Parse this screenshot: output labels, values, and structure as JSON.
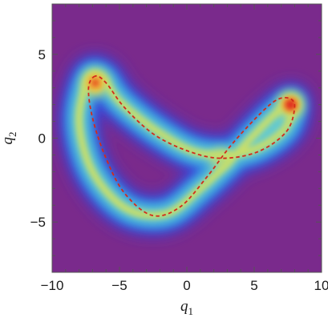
{
  "chart_data": {
    "type": "heatmap",
    "title": "",
    "xlabel": "q",
    "xlabel_sub": "1",
    "ylabel": "q",
    "ylabel_sub": "2",
    "xlim": [
      -10,
      10
    ],
    "ylim": [
      -8,
      8
    ],
    "x_ticks": [
      {
        "value": -10,
        "label": "−10"
      },
      {
        "value": -5,
        "label": "−5"
      },
      {
        "value": 0,
        "label": "0"
      },
      {
        "value": 5,
        "label": "5"
      },
      {
        "value": 10,
        "label": "10"
      }
    ],
    "y_ticks": [
      {
        "value": 5,
        "label": "5"
      },
      {
        "value": 0,
        "label": "0"
      },
      {
        "value": -5,
        "label": "−5"
      }
    ],
    "minor_tick_step": 1,
    "colormap": [
      "#7a2a8c",
      "#3a3fd6",
      "#2f8fe6",
      "#63c9cf",
      "#c7de6a",
      "#f0b33a",
      "#e02a1c"
    ],
    "background_color": "#7a2a8c",
    "density_ridge_points": [
      [
        -7.3,
        3.5
      ],
      [
        -8.0,
        1.0
      ],
      [
        -7.0,
        -2.0
      ],
      [
        -4.5,
        -4.2
      ],
      [
        -1.5,
        -4.5
      ],
      [
        1.0,
        -3.0
      ],
      [
        3.0,
        -1.5
      ],
      [
        5.0,
        0.2
      ],
      [
        6.5,
        1.4
      ],
      [
        7.8,
        2.1
      ],
      [
        7.2,
        0.5
      ],
      [
        4.5,
        -0.8
      ],
      [
        1.0,
        -0.9
      ],
      [
        -2.0,
        0.3
      ],
      [
        -5.0,
        2.2
      ],
      [
        -6.3,
        3.6
      ]
    ],
    "density_peaks": [
      {
        "x": -6.8,
        "y": 3.3,
        "level": "high"
      },
      {
        "x": 7.7,
        "y": 2.0,
        "level": "max"
      },
      {
        "x": 2.5,
        "y": -1.2,
        "level": "medium"
      }
    ],
    "orbit_line": {
      "style": "dashed",
      "color": "#d42a1a",
      "points": [
        [
          -6.8,
          3.7
        ],
        [
          -7.3,
          3.0
        ],
        [
          -7.0,
          1.2
        ],
        [
          -6.1,
          -1.0
        ],
        [
          -4.7,
          -3.2
        ],
        [
          -2.6,
          -4.6
        ],
        [
          -0.5,
          -4.1
        ],
        [
          1.5,
          -2.3
        ],
        [
          3.2,
          -0.5
        ],
        [
          5.0,
          1.1
        ],
        [
          6.5,
          2.2
        ],
        [
          7.5,
          2.4
        ],
        [
          8.0,
          1.9
        ],
        [
          7.4,
          0.4
        ],
        [
          5.3,
          -0.8
        ],
        [
          2.6,
          -1.2
        ],
        [
          0.2,
          -0.8
        ],
        [
          -2.4,
          0.2
        ],
        [
          -4.6,
          1.8
        ],
        [
          -6.0,
          3.3
        ],
        [
          -6.8,
          3.7
        ]
      ]
    }
  }
}
